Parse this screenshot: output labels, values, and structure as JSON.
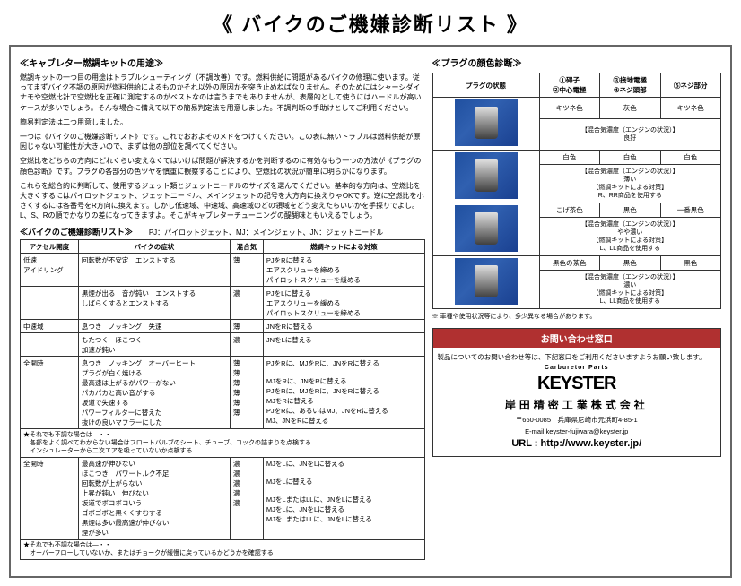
{
  "title": "《 バイクのご機嫌診断リスト 》",
  "left": {
    "sec1_title": "≪キャブレター燃調キットの用途≫",
    "p1": "燃調キットの一つ目の用途はトラブルシューティング（不調改善）です。燃料供給に問題があるバイクの修理に使います。従ってまずバイク不調の原因が燃料供給によるものかそれ以外の原因かを突き止めねばなりません。そのためにはシャーシダイナモや空燃比計で空燃比を正確に測定するのがベストなのは言うまでもありませんが、表層的として使うにはハードルが高いケースが多いでしょう。そんな場合に備えて以下の簡易判定法を用意しました。不調判断の手助けとしてご利用ください。",
    "p2": "簡易判定法は二つ用意しました。",
    "p3": "一つは《バイクのご機嫌診断リスト》です。これでおおよそのメドをつけてください。この表に無いトラブルは燃料供給が原因じゃない可能性が大きいので、まずは他の部位を調べてください。",
    "p4": "空燃比をどちらの方向にどれくらい変えなくてはいけば問題が解決するかを判断するのに有効なもう一つの方法が《プラグの顔色診断》です。プラグの各部分の色ツヤを慎重に観察することにより、空燃比の状況が簡単に明らかになります。",
    "p5": "これらを総合的に判断して、使用するジェット類とジェットニードルのサイズを選んでください。基本的な方向は、空燃比を大きくするにはパイロットジェット、ジェットニードル、メインジェットの記号を大方向に換えりゃOKです。逆に空燃比を小さくするには各番号をR方向に換えます。しかし低速域、中速域、高速域のどの領域をどう変えたらいいかを手探りでよし。L、S、Rの順でかなりの差になってきますよ。そこがキャブレターチューニングの醍醐味ともいえるでしょう。",
    "sec2_title": "≪バイクのご機嫌診断リスト≫",
    "legend": "PJ：パイロットジェット、MJ：メインジェット、JN：ジェットニードル",
    "headers": [
      "アクセル開度",
      "バイクの症状",
      "混合気",
      "燃調キットによる対策"
    ],
    "rows": [
      {
        "zone": "低速\nアイドリング",
        "sym": "回転数が不安定　エンストする",
        "mix": "薄",
        "fix": "PJをRに替える\nエアスクリューを締める\nパイロットスクリューを緩める"
      },
      {
        "zone": "",
        "sym": "黒煙が出る　音が鈍い　エンストする\nしばらくするとエンストする",
        "mix": "濃",
        "fix": "PJをLに替える\nエアスクリューを緩める\nパイロットスクリューを締める"
      },
      {
        "zone": "中速域",
        "sym": "息つき　ノッキング　失速",
        "mix": "薄",
        "fix": "JNをRに替える"
      },
      {
        "zone": "",
        "sym": "もたつく　ほこつく\n加速が鈍い",
        "mix": "濃",
        "fix": "JNをLに替える"
      },
      {
        "zone": "全開時",
        "sym": "息つき　ノッキング　オーバーヒート\nプラグが白く焼ける\n最高速は上がるがパワーがない\nパカパカと高い音がする\n坂道で失速する\nパワーフィルターに替えた\n抜けの良いマフラーにした",
        "mix": "薄\n薄\n薄\n薄\n薄\n薄",
        "fix": "PJをRに、MJをRに、JNをRに替える\n\nMJをRに、JNをRに替える\nPJをRに、MJをRに、JNをRに替える\nMJをRに替える\nPJをRに、あるいはMJ、JNをRに替える\nMJ、JNをRに替える"
      },
      {
        "note": "★それでも不調な場合は―・・\n　各部をよく調べてわからない場合はフロートバルブのシート、チューブ、コックの詰まりを点検する\n　インシュレーターから二次エアを吸っていないか点検する"
      },
      {
        "zone": "全開時",
        "sym": "最高速が伸びない\nほこつき　パワートルク不足\n回転数が上がらない\n上昇が鈍い　伸びない\n坂道でボコボコいう\nゴボゴボと黒くくすむする\n黒煙は多い最高速が伸びない\n煙が多い",
        "mix": "濃\n濃\n濃\n濃\n濃\n\n\n",
        "fix": "MJをLに、JNをLに替える\n\nMJをLに替える\n\nMJをLまたはLLに、JNをLに替える\nMJをLに、JNをLに替える\nMJをLまたはLLに、JNをLに替える"
      },
      {
        "note": "★それでも不調な場合は―・・\n　オーバーフローしていないか、またはチョークが緩慢に戻っているかどうかを確認する"
      }
    ]
  },
  "right": {
    "sec_title": "≪プラグの顔色診断≫",
    "headers": [
      "プラグの状態",
      "①碍子\n②中心電極",
      "③接地電極\n④ネジ頭部",
      "⑤ネジ部分"
    ],
    "rows": [
      {
        "c1": "キツネ色",
        "c2": "灰色",
        "c3": "キツネ色",
        "status": "【混合気濃度（エンジンの状況）】\n良好"
      },
      {
        "c1": "白色",
        "c2": "白色",
        "c3": "白色",
        "status": "【混合気濃度（エンジンの状況）】\n薄い",
        "fix": "【燃調キットによる対策】\nR、RR商品を使用する"
      },
      {
        "c1": "こげ茶色",
        "c2": "黒色",
        "c3": "一番黒色",
        "status": "【混合気濃度（エンジンの状況）】\nやや濃い",
        "fix": "【燃調キットによる対策】\nL、LL商品を使用する"
      },
      {
        "c1": "黒色の茶色",
        "c2": "黒色",
        "c3": "黒色",
        "status": "【混合気濃度（エンジンの状況）】\n濃い",
        "fix": "【燃調キットによる対策】\nL、LL商品を使用する"
      }
    ],
    "footnote": "※ 車種や使用状況等により、多少異なる場合があります。",
    "contact": {
      "header": "お問い合わせ窓口",
      "p1": "製品についてのお問い合わせ等は、下記窓口をご利用くださいますようお願い致します。",
      "logo_small": "Carburetor Parts",
      "logo_big": "KEYSTER",
      "company": "岸田精密工業株式会社",
      "addr": "〒660-0085　兵庫県尼崎市元浜町4-85-1",
      "email": "E-mail:keyster-fujiwara@keyster.jp",
      "url": "URL : http://www.keyster.jp/"
    }
  }
}
